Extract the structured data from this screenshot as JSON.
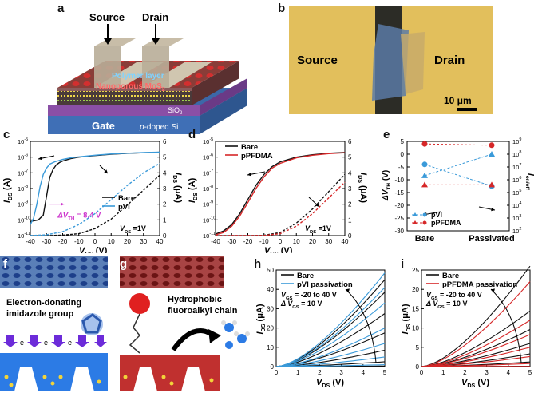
{
  "panel_labels": {
    "a": "a",
    "b": "b",
    "c": "c",
    "d": "d",
    "e": "e",
    "f": "f",
    "g": "g",
    "h": "h",
    "i": "i"
  },
  "panel_a": {
    "source": "Source",
    "drain": "Drain",
    "polymer": "Polymer layer",
    "mos2": "Nanoporous MoS",
    "mos2_sub": "2",
    "sio2": "SiO",
    "sio2_sub": "2",
    "gate": "Gate",
    "psi": "p",
    "psi_rest": "-doped Si"
  },
  "panel_b": {
    "source": "Source",
    "drain": "Drain",
    "scale": "10 μm"
  },
  "panel_f": {
    "caption_line1": "Electron-donating",
    "caption_line2": "imidazole group",
    "electron": "e"
  },
  "panel_g": {
    "caption_line1": "Hydrophobic",
    "caption_line2": "fluoroalkyl chain"
  },
  "colors": {
    "bare": "#111111",
    "pvi": "#3a9ad9",
    "ppfdma": "#d62728",
    "magenta": "#cc33cc"
  },
  "chart_data": [
    {
      "id": "c",
      "type": "line",
      "xlabel": "V",
      "xlabel_sub": "GS",
      "xlabel_unit": " (V)",
      "ylabel": "I",
      "ylabel_sub": "DS",
      "ylabel_unit": " (A)",
      "y2label": "I",
      "y2label_sub": "DS",
      "y2label_unit": " (μA)",
      "xlim": [
        -40,
        40
      ],
      "xticks": [
        "-40",
        "-30",
        "-20",
        "-10",
        "0",
        "10",
        "20",
        "30",
        "40"
      ],
      "ylim_log": [
        -11,
        -5
      ],
      "yticks": [
        "10",
        "10",
        "10",
        "10",
        "10",
        "10",
        "10"
      ],
      "yexp": [
        "-11",
        "-10",
        "-9",
        "-8",
        "-7",
        "-6",
        "-5"
      ],
      "y2lim": [
        0,
        6
      ],
      "y2ticks": [
        "0",
        "1",
        "2",
        "3",
        "4",
        "5",
        "6"
      ],
      "legend": [
        "Bare",
        "pVI"
      ],
      "annotation": "ΔV",
      "annotation_sub": "TH",
      "annotation_rest": " = 8.4 V",
      "vds": "V",
      "vds_sub": "DS",
      "vds_rest": " =1V",
      "series": [
        {
          "name": "Bare",
          "scale": "log",
          "style": "solid",
          "color": "#111111",
          "x": [
            -40,
            -35,
            -32,
            -30,
            -28,
            -26,
            -24,
            -22,
            -20,
            -15,
            -10,
            0,
            10,
            20,
            30,
            40
          ],
          "y": [
            -10.1,
            -10.0,
            -9.7,
            -8.5,
            -7.3,
            -6.8,
            -6.5,
            -6.35,
            -6.25,
            -6.1,
            -6.0,
            -5.9,
            -5.82,
            -5.76,
            -5.72,
            -5.69
          ]
        },
        {
          "name": "pVI",
          "scale": "log",
          "style": "solid",
          "color": "#3a9ad9",
          "x": [
            -40,
            -38,
            -36,
            -34,
            -32,
            -30,
            -28,
            -25,
            -20,
            -15,
            -10,
            0,
            10,
            20,
            30,
            40
          ],
          "y": [
            -10.3,
            -9.9,
            -9.0,
            -7.9,
            -7.1,
            -6.7,
            -6.45,
            -6.3,
            -6.15,
            -6.05,
            -5.98,
            -5.88,
            -5.8,
            -5.75,
            -5.71,
            -5.68
          ]
        },
        {
          "name": "Bare",
          "scale": "linear",
          "style": "dashed",
          "color": "#111111",
          "x": [
            -40,
            -30,
            -20,
            -10,
            0,
            10,
            20,
            30,
            40
          ],
          "y": [
            0,
            0,
            0.03,
            0.12,
            0.45,
            1.05,
            1.95,
            2.9,
            3.85
          ]
        },
        {
          "name": "pVI",
          "scale": "linear",
          "style": "dashed",
          "color": "#3a9ad9",
          "x": [
            -40,
            -30,
            -20,
            -10,
            0,
            10,
            20,
            30,
            40
          ],
          "y": [
            0,
            0.05,
            0.25,
            0.7,
            1.4,
            2.3,
            3.2,
            4.0,
            4.6
          ]
        }
      ]
    },
    {
      "id": "d",
      "type": "line",
      "xlabel": "V",
      "xlabel_sub": "GS",
      "xlabel_unit": " (V)",
      "ylabel": "I",
      "ylabel_sub": "DS",
      "ylabel_unit": " (A)",
      "y2label": "I",
      "y2label_sub": "DS",
      "y2label_unit": " (μA)",
      "xlim": [
        -40,
        40
      ],
      "xticks": [
        "-40",
        "-30",
        "-20",
        "-10",
        "0",
        "10",
        "20",
        "30",
        "40"
      ],
      "ylim_log": [
        -11,
        -5
      ],
      "yticks": [
        "10",
        "10",
        "10",
        "10",
        "10",
        "10",
        "10"
      ],
      "yexp": [
        "-11",
        "-10",
        "-9",
        "-8",
        "-7",
        "-6",
        "-5"
      ],
      "y2lim": [
        0,
        6
      ],
      "y2ticks": [
        "0",
        "1",
        "2",
        "3",
        "4",
        "5",
        "6"
      ],
      "legend": [
        "Bare",
        "pPFDMA"
      ],
      "vds": "V",
      "vds_sub": "DS",
      "vds_rest": " =1V",
      "series": [
        {
          "name": "Bare",
          "scale": "log",
          "style": "solid",
          "color": "#111111",
          "x": [
            -40,
            -35,
            -30,
            -25,
            -20,
            -15,
            -10,
            -5,
            0,
            10,
            20,
            30,
            40
          ],
          "y": [
            -10.9,
            -10.7,
            -10.3,
            -9.6,
            -8.7,
            -7.8,
            -7.1,
            -6.6,
            -6.3,
            -6.0,
            -5.85,
            -5.75,
            -5.7
          ]
        },
        {
          "name": "pPFDMA",
          "scale": "log",
          "style": "solid",
          "color": "#d62728",
          "x": [
            -40,
            -35,
            -30,
            -25,
            -20,
            -15,
            -10,
            -5,
            0,
            10,
            20,
            30,
            40
          ],
          "y": [
            -10.95,
            -10.8,
            -10.4,
            -9.75,
            -8.9,
            -8.0,
            -7.25,
            -6.7,
            -6.4,
            -6.05,
            -5.88,
            -5.78,
            -5.72
          ]
        },
        {
          "name": "Bare",
          "scale": "linear",
          "style": "dashed",
          "color": "#111111",
          "x": [
            -40,
            -30,
            -20,
            -10,
            0,
            10,
            20,
            30,
            40
          ],
          "y": [
            0,
            0,
            0,
            0.02,
            0.2,
            0.8,
            1.7,
            2.8,
            3.9
          ]
        },
        {
          "name": "pPFDMA",
          "scale": "linear",
          "style": "dashed",
          "color": "#d62728",
          "x": [
            -40,
            -30,
            -20,
            -10,
            0,
            10,
            20,
            30,
            40
          ],
          "y": [
            0,
            0,
            0,
            0.01,
            0.12,
            0.6,
            1.4,
            2.4,
            3.4
          ]
        }
      ]
    },
    {
      "id": "e",
      "type": "scatter",
      "ylabel": "ΔV",
      "ylabel_sub": "TH",
      "ylabel_unit": " (V)",
      "y2label": "I",
      "y2label_sub": "on/off",
      "y2label_unit": "",
      "categories": [
        "Bare",
        "Passivated"
      ],
      "ylim": [
        -30,
        5
      ],
      "yticks": [
        "-30",
        "-25",
        "-20",
        "-15",
        "-10",
        "-5",
        "0",
        "5"
      ],
      "y2lim_log": [
        2,
        9
      ],
      "y2ticks": [
        "10",
        "10",
        "10",
        "10",
        "10",
        "10",
        "10",
        "10"
      ],
      "y2exp": [
        "2",
        "3",
        "4",
        "5",
        "6",
        "7",
        "8",
        "9"
      ],
      "legend": [
        "pVI",
        "pPFDMA"
      ],
      "series": [
        {
          "name": "pVI",
          "axis": "left",
          "marker": "triangle",
          "color": "#3a9ad9",
          "values": [
            -8.4,
            0
          ]
        },
        {
          "name": "pVI",
          "axis": "right",
          "marker": "circle",
          "color": "#3a9ad9",
          "values": [
            7.2,
            5.5
          ]
        },
        {
          "name": "pPFDMA",
          "axis": "left",
          "marker": "triangle",
          "color": "#d62728",
          "values": [
            -12,
            -12
          ]
        },
        {
          "name": "pPFDMA",
          "axis": "right",
          "marker": "circle",
          "color": "#d62728",
          "values": [
            8.8,
            8.7
          ]
        }
      ]
    },
    {
      "id": "h",
      "type": "line",
      "xlabel": "V",
      "xlabel_sub": "DS",
      "xlabel_unit": " (V)",
      "ylabel": "I",
      "ylabel_sub": "DS",
      "ylabel_unit": " (μA)",
      "xlim": [
        0,
        5
      ],
      "xticks": [
        "0",
        "1",
        "2",
        "3",
        "4",
        "5"
      ],
      "ylim": [
        0,
        50
      ],
      "yticks": [
        "0",
        "10",
        "20",
        "30",
        "40",
        "50"
      ],
      "legend": [
        "Bare",
        "pVI passivation"
      ],
      "note1": "V",
      "note1_sub": "GS",
      "note1_rest": " = -20 to 40 V",
      "note2": "Δ V",
      "note2_sub": "GS",
      "note2_rest": " = 10 V",
      "bare_sat": [
        0.3,
        2.5,
        8.5,
        17.5,
        27.5,
        38.5,
        45
      ],
      "passivated_sat": [
        1.0,
        5.0,
        12.0,
        20.0,
        33.0,
        41.0,
        48.5
      ]
    },
    {
      "id": "i",
      "type": "line",
      "xlabel": "V",
      "xlabel_sub": "DS",
      "xlabel_unit": " (V)",
      "ylabel": "I",
      "ylabel_sub": "DS",
      "ylabel_unit": " (μA)",
      "xlim": [
        0,
        5
      ],
      "xticks": [
        "0",
        "1",
        "2",
        "3",
        "4",
        "5"
      ],
      "ylim": [
        0,
        25
      ],
      "yticks": [
        "0",
        "5",
        "10",
        "15",
        "20",
        "25"
      ],
      "legend": [
        "Bare",
        "pPFDMA passivation"
      ],
      "note1": "V",
      "note1_sub": "GS",
      "note1_rest": " = -20 to 40 V",
      "note2": "Δ V",
      "note2_sub": "GS",
      "note2_rest": " = 10 V",
      "bare_sat": [
        0.1,
        1.2,
        3.3,
        6.0,
        9.6,
        14.4,
        26.0
      ],
      "passivated_sat": [
        0.05,
        0.8,
        2.6,
        5.0,
        8.3,
        12.0,
        22.0
      ]
    }
  ]
}
